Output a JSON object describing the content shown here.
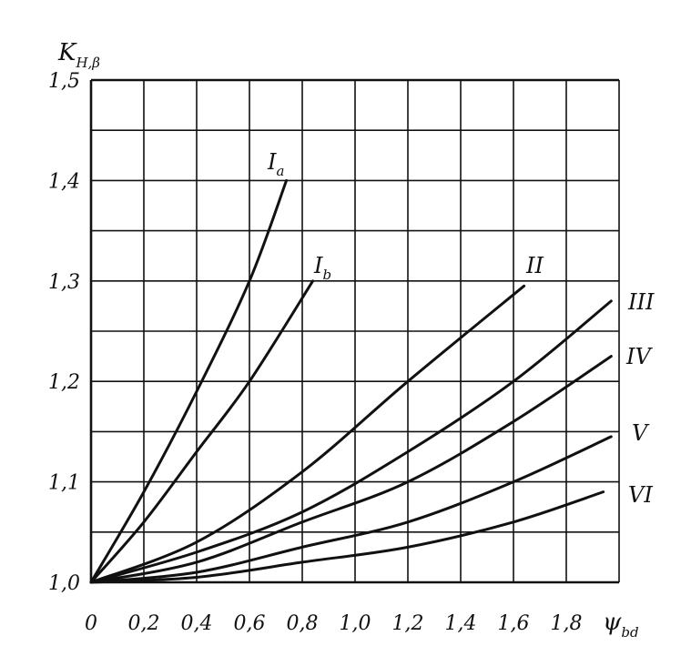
{
  "chart_data": {
    "type": "line",
    "ylabel": {
      "main": "K",
      "sub": "H,β"
    },
    "xlabel": {
      "main": "ψ",
      "sub": "bd"
    },
    "xlim": [
      0,
      2.0
    ],
    "ylim": [
      1.0,
      1.5
    ],
    "grid": true,
    "x_ticks": [
      "0",
      "0,2",
      "0,4",
      "0,6",
      "0,8",
      "1,0",
      "1,2",
      "1,4",
      "1,6",
      "1,8"
    ],
    "y_ticks": [
      "1,0",
      "1,1",
      "1,2",
      "1,3",
      "1,4",
      "1,5"
    ],
    "series": [
      {
        "name": "Ia",
        "label_main": "I",
        "label_sub": "a",
        "x": [
          0,
          0.2,
          0.4,
          0.6,
          0.74
        ],
        "y": [
          1.0,
          1.09,
          1.19,
          1.3,
          1.4
        ]
      },
      {
        "name": "Ib",
        "label_main": "I",
        "label_sub": "b",
        "x": [
          0,
          0.2,
          0.4,
          0.6,
          0.84
        ],
        "y": [
          1.0,
          1.06,
          1.13,
          1.2,
          1.3
        ]
      },
      {
        "name": "II",
        "label_main": "II",
        "label_sub": "",
        "x": [
          0,
          0.4,
          0.8,
          1.2,
          1.64
        ],
        "y": [
          1.0,
          1.04,
          1.11,
          1.2,
          1.295
        ]
      },
      {
        "name": "III",
        "label_main": "III",
        "label_sub": "",
        "x": [
          0,
          0.4,
          0.8,
          1.2,
          1.6,
          1.97
        ],
        "y": [
          1.0,
          1.03,
          1.07,
          1.13,
          1.2,
          1.28
        ]
      },
      {
        "name": "IV",
        "label_main": "IV",
        "label_sub": "",
        "x": [
          0,
          0.4,
          0.8,
          1.2,
          1.6,
          1.97
        ],
        "y": [
          1.0,
          1.02,
          1.06,
          1.1,
          1.16,
          1.225
        ]
      },
      {
        "name": "V",
        "label_main": "V",
        "label_sub": "",
        "x": [
          0,
          0.4,
          0.8,
          1.2,
          1.6,
          1.97
        ],
        "y": [
          1.0,
          1.01,
          1.035,
          1.06,
          1.1,
          1.145
        ]
      },
      {
        "name": "VI",
        "label_main": "VI",
        "label_sub": "",
        "x": [
          0,
          0.4,
          0.8,
          1.2,
          1.6,
          1.94
        ],
        "y": [
          1.0,
          1.005,
          1.02,
          1.035,
          1.06,
          1.09
        ]
      }
    ]
  }
}
